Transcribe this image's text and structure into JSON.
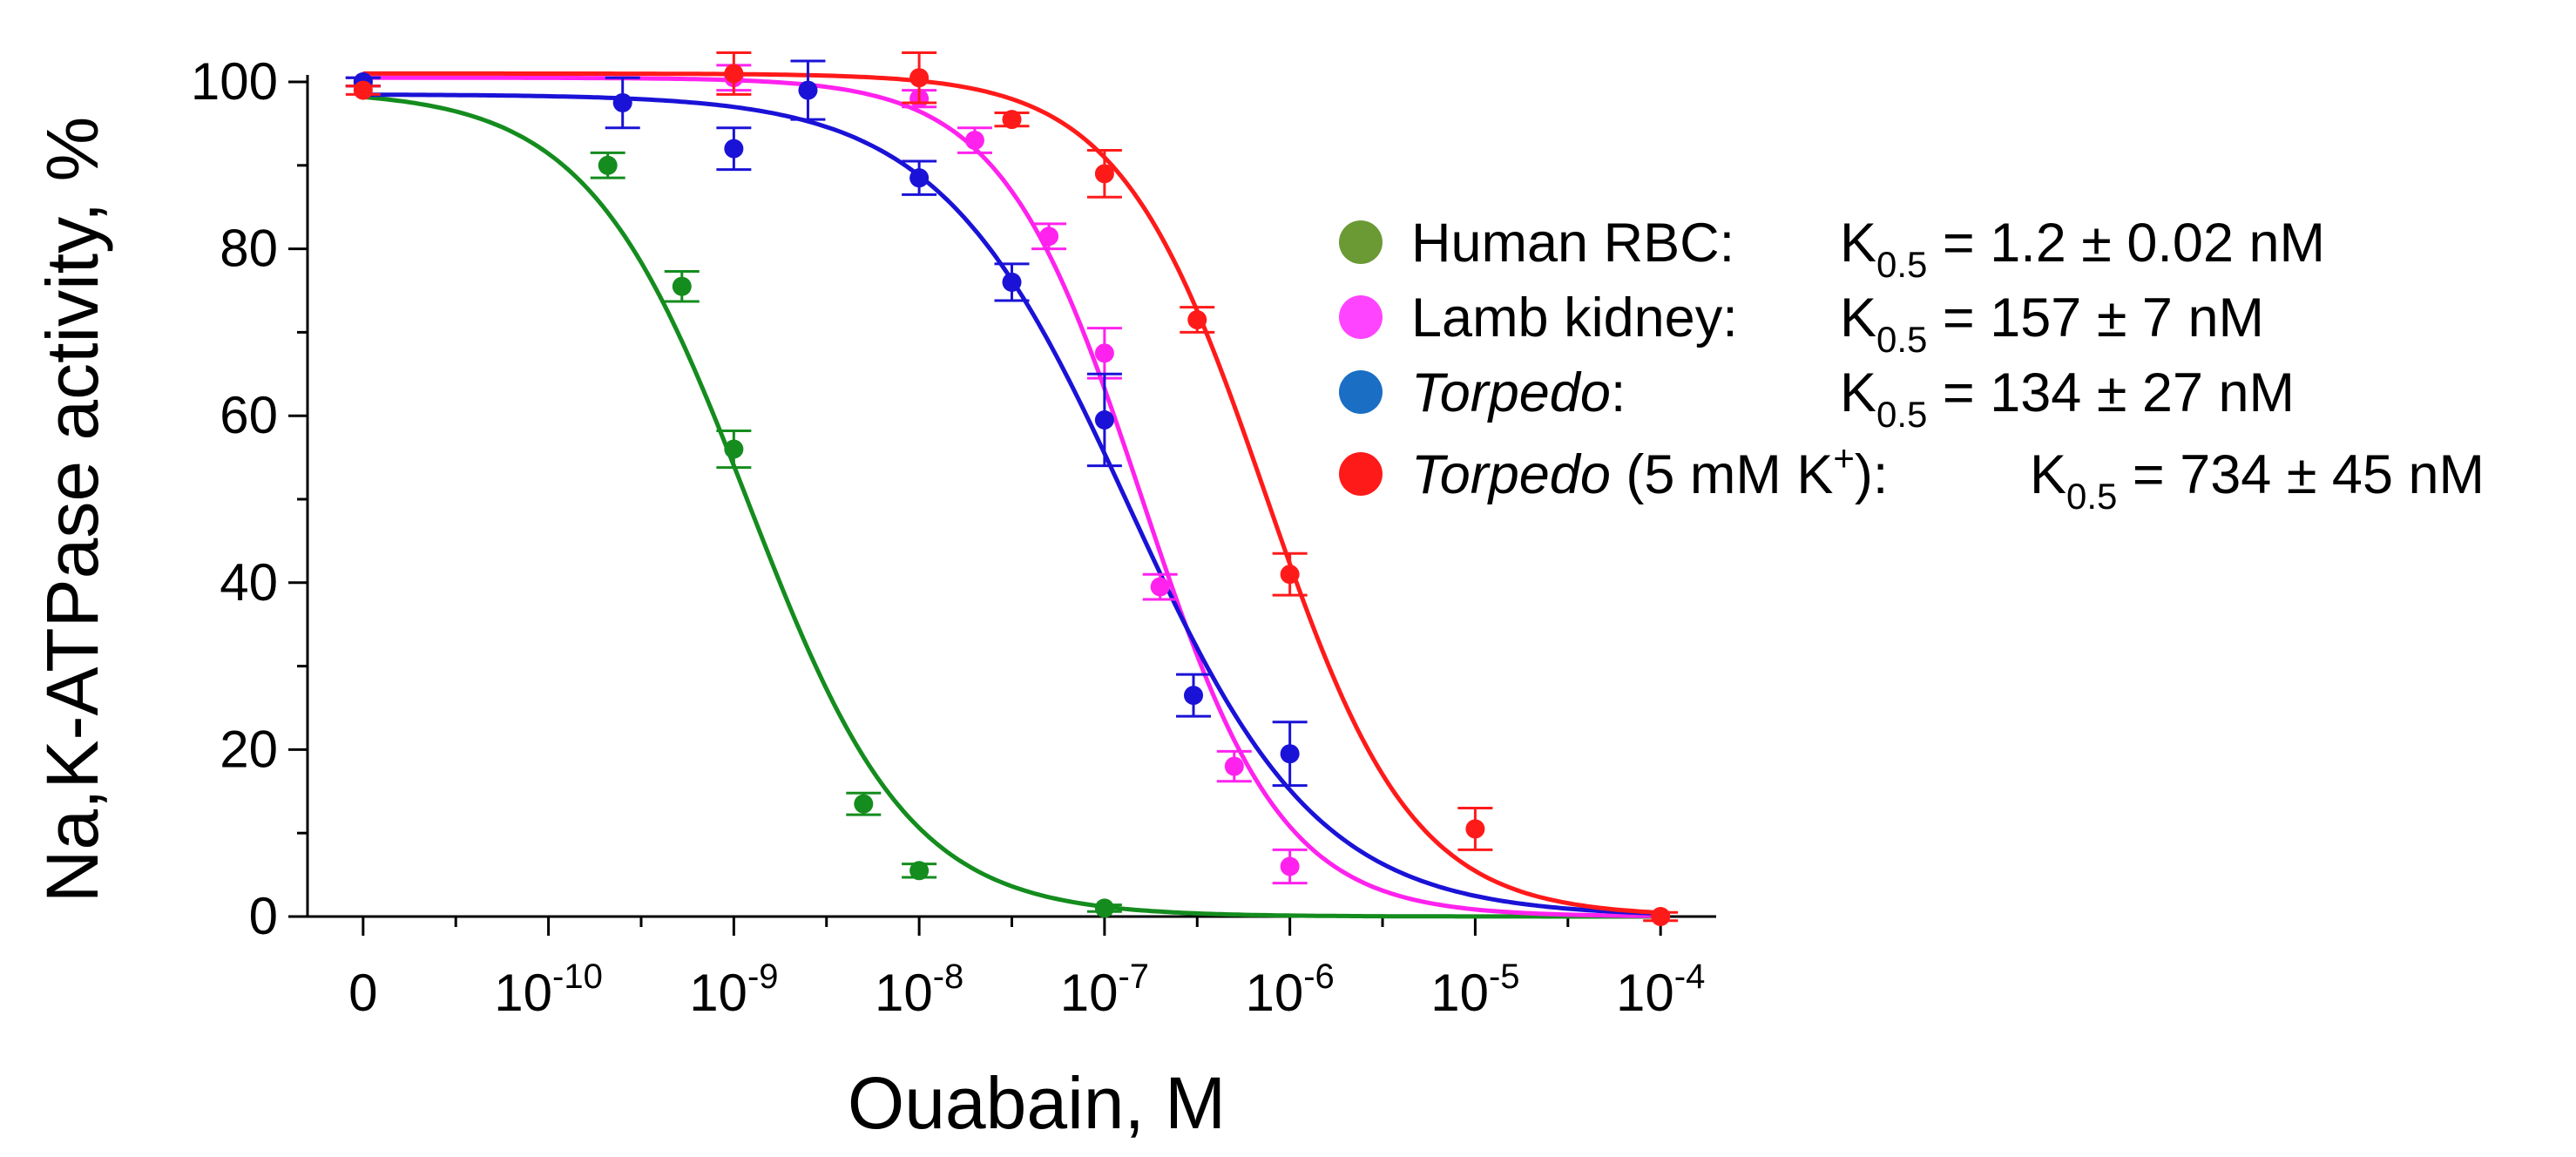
{
  "chart_data": {
    "type": "scatter",
    "xlabel": "Ouabain, M",
    "ylabel": "Na,K-ATPase activity, %",
    "xscale": "log",
    "xlim_log10": [
      -11.3,
      -3.7
    ],
    "ylim": [
      0,
      100
    ],
    "x_ticks": [
      {
        "log": -11,
        "base": "0",
        "exp": ""
      },
      {
        "log": -10,
        "base": "10",
        "exp": "-10"
      },
      {
        "log": -9,
        "base": "10",
        "exp": "-9"
      },
      {
        "log": -8,
        "base": "10",
        "exp": "-8"
      },
      {
        "log": -7,
        "base": "10",
        "exp": "-7"
      },
      {
        "log": -6,
        "base": "10",
        "exp": "-6"
      },
      {
        "log": -5,
        "base": "10",
        "exp": "-5"
      },
      {
        "log": -4,
        "base": "10",
        "exp": "-4"
      }
    ],
    "y_ticks": [
      0,
      20,
      40,
      60,
      80,
      100
    ],
    "legend_position": "right",
    "series": [
      {
        "name": "Human RBC",
        "legend_name": "Human RBC:",
        "italic": false,
        "k_text": "= 1.2 ± 0.02 nM",
        "marker_color": "#6b9a35",
        "color": "#148c1e",
        "k05_log": -8.92,
        "hill": 1.0,
        "top": 99,
        "points": [
          {
            "log_x": -11.0,
            "y": 100,
            "err": 0.5
          },
          {
            "log_x": -9.68,
            "y": 90,
            "err": 1.5
          },
          {
            "log_x": -9.28,
            "y": 75.5,
            "err": 1.8
          },
          {
            "log_x": -9.0,
            "y": 56,
            "err": 2.2
          },
          {
            "log_x": -8.3,
            "y": 13.5,
            "err": 1.3
          },
          {
            "log_x": -8.0,
            "y": 5.5,
            "err": 0.8
          },
          {
            "log_x": -7.0,
            "y": 1,
            "err": 0.4
          }
        ]
      },
      {
        "name": "Lamb kidney",
        "legend_name": "Lamb kidney:",
        "italic": false,
        "k_text": "= 157 ± 7 nM",
        "marker_color": "#ff44ff",
        "color": "#ff22ee",
        "k05_log": -6.8,
        "hill": 1.15,
        "top": 100.5,
        "points": [
          {
            "log_x": -11.0,
            "y": 100,
            "err": 0.5
          },
          {
            "log_x": -9.0,
            "y": 100.5,
            "err": 1.5
          },
          {
            "log_x": -8.0,
            "y": 98,
            "err": 1.0
          },
          {
            "log_x": -7.7,
            "y": 93,
            "err": 1.5
          },
          {
            "log_x": -7.3,
            "y": 81.5,
            "err": 1.5
          },
          {
            "log_x": -7.0,
            "y": 67.5,
            "err": 3.0
          },
          {
            "log_x": -6.7,
            "y": 39.5,
            "err": 1.5
          },
          {
            "log_x": -6.3,
            "y": 18,
            "err": 1.8
          },
          {
            "log_x": -6.0,
            "y": 6,
            "err": 2.0
          }
        ]
      },
      {
        "name": "Torpedo",
        "legend_name": "Torpedo",
        "legend_suffix": ":",
        "italic": true,
        "k_text": "= 134 ± 27 nM",
        "marker_color": "#1a6ec4",
        "color": "#1a12d6",
        "k05_log": -6.87,
        "hill": 0.85,
        "top": 98.5,
        "points": [
          {
            "log_x": -11.0,
            "y": 100,
            "err": 0.5
          },
          {
            "log_x": -9.6,
            "y": 97.5,
            "err": 3.0
          },
          {
            "log_x": -9.0,
            "y": 92,
            "err": 2.5
          },
          {
            "log_x": -8.6,
            "y": 99,
            "err": 3.5
          },
          {
            "log_x": -8.0,
            "y": 88.5,
            "err": 2.0
          },
          {
            "log_x": -7.5,
            "y": 76,
            "err": 2.2
          },
          {
            "log_x": -7.0,
            "y": 59.5,
            "err": 5.5
          },
          {
            "log_x": -6.52,
            "y": 26.5,
            "err": 2.5
          },
          {
            "log_x": -6.0,
            "y": 19.5,
            "err": 3.8
          }
        ]
      },
      {
        "name": "Torpedo (5 mM K+)",
        "legend_name": "Torpedo",
        "legend_suffix": " (5 mM K",
        "legend_sup": "+",
        "legend_suffix2": "):",
        "italic": true,
        "k_text": "= 734 ± 45 nM",
        "marker_color": "#ff1a1a",
        "color": "#ff1a1a",
        "k05_log": -6.13,
        "hill": 1.1,
        "top": 101,
        "points": [
          {
            "log_x": -11.0,
            "y": 99,
            "err": 0.5
          },
          {
            "log_x": -9.0,
            "y": 101,
            "err": 2.5
          },
          {
            "log_x": -8.0,
            "y": 100.5,
            "err": 3.0
          },
          {
            "log_x": -7.5,
            "y": 95.5,
            "err": 0.8
          },
          {
            "log_x": -7.0,
            "y": 89,
            "err": 2.8
          },
          {
            "log_x": -6.5,
            "y": 71.5,
            "err": 1.5
          },
          {
            "log_x": -6.0,
            "y": 41,
            "err": 2.5
          },
          {
            "log_x": -5.0,
            "y": 10.5,
            "err": 2.5
          },
          {
            "log_x": -4.0,
            "y": 0,
            "err": 0.5
          }
        ]
      }
    ]
  },
  "legend": {
    "k_symbol": "K",
    "k_subscript": "0.5"
  }
}
